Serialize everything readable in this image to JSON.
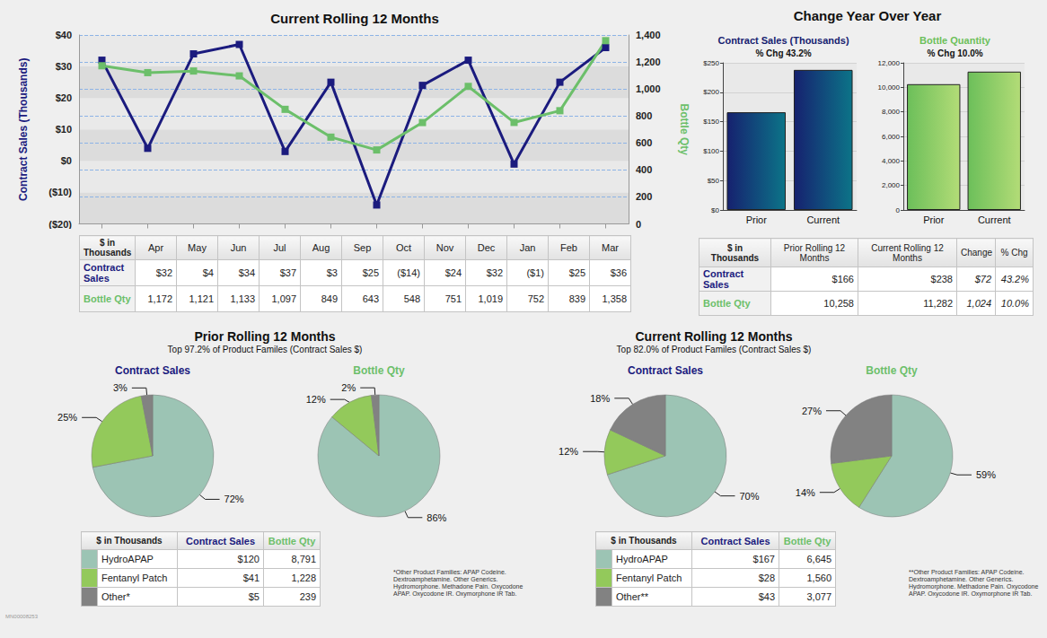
{
  "chart_data": [
    {
      "type": "line",
      "title": "Current Rolling 12 Months",
      "ylabel": "Contract Sales (Thousands)",
      "y2label": "Bottle Qty",
      "categories": [
        "Apr",
        "May",
        "Jun",
        "Jul",
        "Aug",
        "Sep",
        "Oct",
        "Nov",
        "Dec",
        "Jan",
        "Feb",
        "Mar"
      ],
      "series": [
        {
          "name": "Contract Sales",
          "color": "#1b1b7e",
          "marker": "square",
          "values": [
            32,
            4,
            34,
            37,
            3,
            25,
            -14,
            24,
            32,
            -1,
            25,
            36
          ]
        },
        {
          "name": "Bottle Qty",
          "color": "#6cbf6a",
          "marker": "square",
          "axis": "y2",
          "values": [
            1172,
            1121,
            1133,
            1097,
            849,
            643,
            548,
            751,
            1019,
            752,
            839,
            1358
          ]
        }
      ],
      "ylim": [
        -20,
        40
      ],
      "yticks": [
        {
          "value": -20,
          "label": "($20)"
        },
        {
          "value": -10,
          "label": "($10)"
        },
        {
          "value": 0,
          "label": "$0"
        },
        {
          "value": 10,
          "label": "$10"
        },
        {
          "value": 20,
          "label": "$20"
        },
        {
          "value": 30,
          "label": "$30"
        },
        {
          "value": 40,
          "label": "$40"
        }
      ],
      "y2lim": [
        0,
        1400
      ],
      "y2ticks": [
        0,
        200,
        400,
        600,
        800,
        {
          "value": 1000,
          "label": "1,000"
        },
        {
          "value": 1200,
          "label": "1,200"
        },
        {
          "value": 1400,
          "label": "1,400"
        }
      ],
      "grid": true,
      "tick_labels": "y"
    },
    {
      "type": "bar",
      "title": "Contract Sales (Thousands)",
      "subtitle": "% Chg 43.2%",
      "categories": [
        "Prior",
        "Current"
      ],
      "values": [
        166,
        238
      ],
      "color": "#16216f",
      "ylim": [
        0,
        250
      ],
      "yticks": [
        {
          "value": 0,
          "label": "$0"
        },
        {
          "value": 50,
          "label": "$50"
        },
        {
          "value": 100,
          "label": "$100"
        },
        {
          "value": 150,
          "label": "$150"
        },
        {
          "value": 200,
          "label": "$200"
        },
        {
          "value": 250,
          "label": "$250"
        }
      ],
      "grid": true
    },
    {
      "type": "bar",
      "title": "Bottle Quantity",
      "subtitle": "% Chg 10.0%",
      "categories": [
        "Prior",
        "Current"
      ],
      "values": [
        10258,
        11282
      ],
      "color": "#6cbf5a",
      "ylim": [
        0,
        12000
      ],
      "yticks": [
        0,
        {
          "value": 2000,
          "label": "2,000"
        },
        {
          "value": 4000,
          "label": "4,000"
        },
        {
          "value": 6000,
          "label": "6,000"
        },
        {
          "value": 8000,
          "label": "8,000"
        },
        {
          "value": 10000,
          "label": "10,000"
        },
        {
          "value": 12000,
          "label": "12,000"
        }
      ],
      "grid": true
    },
    {
      "type": "pie",
      "title": "Contract Sales",
      "categories": [
        "HydroAPAP",
        "Fentanyl Patch",
        "Other*"
      ],
      "values": [
        72,
        25,
        3
      ],
      "value_labels": [
        "72%",
        "25%",
        "3%"
      ],
      "colors": [
        "#9cc4b4",
        "#93c95b",
        "#828282"
      ],
      "data_labels": true
    },
    {
      "type": "pie",
      "title": "Bottle Qty",
      "categories": [
        "HydroAPAP",
        "Fentanyl Patch",
        "Other*"
      ],
      "values": [
        86,
        12,
        2
      ],
      "value_labels": [
        "86%",
        "12%",
        "2%"
      ],
      "colors": [
        "#9cc4b4",
        "#93c95b",
        "#828282"
      ],
      "data_labels": true
    },
    {
      "type": "pie",
      "title": "Contract Sales",
      "categories": [
        "HydroAPAP",
        "Fentanyl Patch",
        "Other**"
      ],
      "values": [
        70,
        12,
        18
      ],
      "value_labels": [
        "70%",
        "12%",
        "18%"
      ],
      "colors": [
        "#9cc4b4",
        "#93c95b",
        "#828282"
      ],
      "data_labels": true
    },
    {
      "type": "pie",
      "title": "Bottle Qty",
      "categories": [
        "HydroAPAP",
        "Fentanyl Patch",
        "Other**"
      ],
      "values": [
        59,
        14,
        27
      ],
      "value_labels": [
        "59%",
        "14%",
        "27%"
      ],
      "colors": [
        "#9cc4b4",
        "#93c95b",
        "#828282"
      ],
      "data_labels": true
    }
  ],
  "headings": {
    "yoy": "Change Year Over Year",
    "prior": {
      "title": "Prior Rolling 12 Months",
      "subtitle": "Top 97.2% of Product Familes (Contract Sales $)"
    },
    "current": {
      "title": "Current Rolling 12 Months",
      "subtitle": "Top 82.0% of Product Familes (Contract Sales $)"
    }
  },
  "tables": {
    "monthly": {
      "header": [
        "$ in Thousands",
        "Apr",
        "May",
        "Jun",
        "Jul",
        "Aug",
        "Sep",
        "Oct",
        "Nov",
        "Dec",
        "Jan",
        "Feb",
        "Mar"
      ],
      "rows": [
        [
          "Contract Sales",
          "$32",
          "$4",
          "$34",
          "$37",
          "$3",
          "$25",
          "($14)",
          "$24",
          "$32",
          "($1)",
          "$25",
          "$36"
        ],
        [
          "Bottle Qty",
          "1,172",
          "1,121",
          "1,133",
          "1,097",
          "849",
          "643",
          "548",
          "751",
          "1,019",
          "752",
          "839",
          "1,358"
        ]
      ]
    },
    "yoy": {
      "header": [
        "$ in Thousands",
        "Prior Rolling 12 Months",
        "Current Rolling 12 Months",
        "Change",
        "% Chg"
      ],
      "rows": [
        [
          "Contract Sales",
          "$166",
          "$238",
          "$72",
          "43.2%"
        ],
        [
          "Bottle Qty",
          "10,258",
          "11,282",
          "1,024",
          "10.0%"
        ]
      ]
    },
    "prior": {
      "header": [
        "$ in Thousands",
        "Contract Sales",
        "Bottle Qty"
      ],
      "rows": [
        [
          "HydroAPAP",
          "$120",
          "8,791"
        ],
        [
          "Fentanyl Patch",
          "$41",
          "1,228"
        ],
        [
          "Other*",
          "$5",
          "239"
        ]
      ]
    },
    "current": {
      "header": [
        "$ in Thousands",
        "Contract Sales",
        "Bottle Qty"
      ],
      "rows": [
        [
          "HydroAPAP",
          "$167",
          "6,645"
        ],
        [
          "Fentanyl Patch",
          "$28",
          "1,560"
        ],
        [
          "Other**",
          "$43",
          "3,077"
        ]
      ]
    }
  },
  "footnotes": {
    "prior": "*Other Product Families: APAP Codeine. Dextroamphetamine. Other Generics. Hydromorphone. Methadone Pain. Oxycodone APAP. Oxycodone IR. Oxymorphone IR Tab.",
    "current": "**Other Product Families: APAP Codeine. Dextroamphetamine. Other Generics. Hydromorphone. Methadone Pain. Oxycodone APAP. Oxycodone IR. Oxymorphone IR Tab."
  },
  "doc_id": "MN00008253"
}
